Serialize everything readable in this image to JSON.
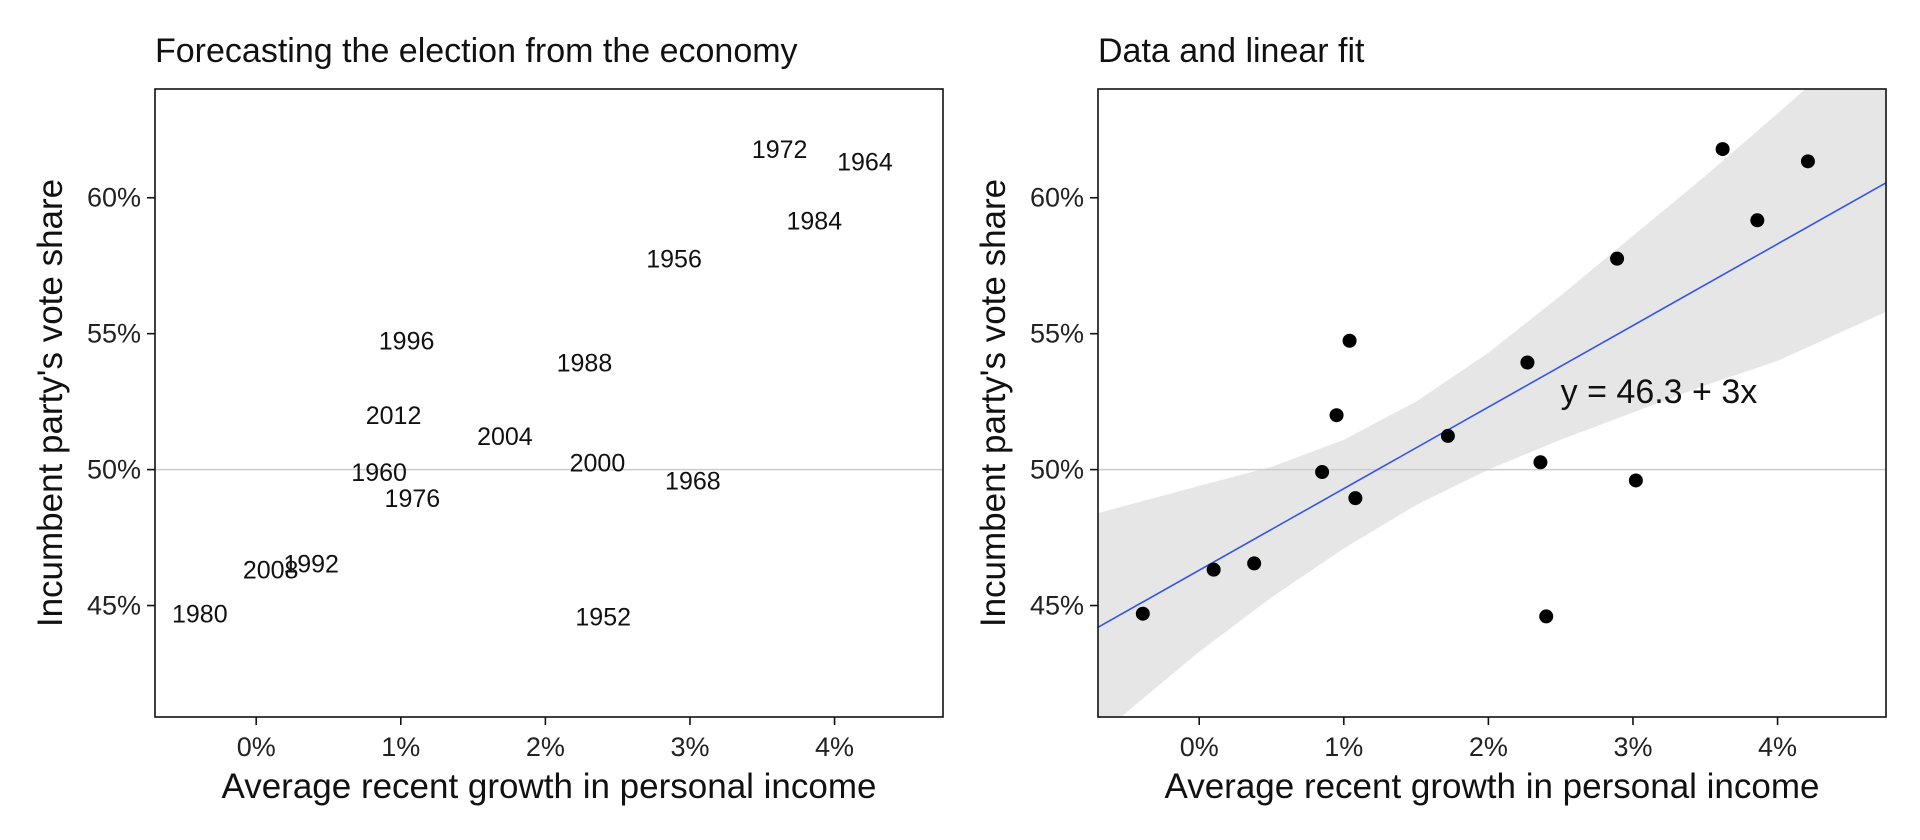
{
  "chart_data": [
    {
      "type": "scatter",
      "marker": "text-labels",
      "title": "Forecasting the election from the economy",
      "xlabel": "Average recent growth in personal income",
      "ylabel": "Incumbent party's vote share",
      "xlim": [
        -0.7,
        4.75
      ],
      "ylim": [
        40.9,
        64
      ],
      "xticks": [
        0,
        1,
        2,
        3,
        4
      ],
      "xtick_labels": [
        "0%",
        "1%",
        "2%",
        "3%",
        "4%"
      ],
      "yticks": [
        45,
        50,
        55,
        60
      ],
      "ytick_labels": [
        "45%",
        "50%",
        "55%",
        "60%"
      ],
      "reference_line_y": 50,
      "reference_color": "#cccccc",
      "grid": false,
      "points": [
        {
          "label": "1952",
          "x": 2.4,
          "y": 44.6
        },
        {
          "label": "1956",
          "x": 2.89,
          "y": 57.76
        },
        {
          "label": "1960",
          "x": 0.85,
          "y": 49.91
        },
        {
          "label": "1964",
          "x": 4.21,
          "y": 61.34
        },
        {
          "label": "1968",
          "x": 3.02,
          "y": 49.6
        },
        {
          "label": "1972",
          "x": 3.62,
          "y": 61.79
        },
        {
          "label": "1976",
          "x": 1.08,
          "y": 48.95
        },
        {
          "label": "1980",
          "x": -0.39,
          "y": 44.7
        },
        {
          "label": "1984",
          "x": 3.86,
          "y": 59.17
        },
        {
          "label": "1988",
          "x": 2.27,
          "y": 53.94
        },
        {
          "label": "1992",
          "x": 0.38,
          "y": 46.55
        },
        {
          "label": "1996",
          "x": 1.04,
          "y": 54.74
        },
        {
          "label": "2000",
          "x": 2.36,
          "y": 50.27
        },
        {
          "label": "2004",
          "x": 1.72,
          "y": 51.24
        },
        {
          "label": "2008",
          "x": 0.1,
          "y": 46.32
        },
        {
          "label": "2012",
          "x": 0.95,
          "y": 52.0
        }
      ]
    },
    {
      "type": "scatter",
      "title": "Data and linear fit",
      "xlabel": "Average recent growth in personal income",
      "ylabel": "Incumbent party's vote share",
      "xlim": [
        -0.7,
        4.75
      ],
      "ylim": [
        40.9,
        64
      ],
      "xticks": [
        0,
        1,
        2,
        3,
        4
      ],
      "xtick_labels": [
        "0%",
        "1%",
        "2%",
        "3%",
        "4%"
      ],
      "yticks": [
        45,
        50,
        55,
        60
      ],
      "ytick_labels": [
        "45%",
        "50%",
        "55%",
        "60%"
      ],
      "reference_line_y": 50,
      "reference_color": "#cccccc",
      "grid": false,
      "points": [
        {
          "x": 2.4,
          "y": 44.6
        },
        {
          "x": 2.89,
          "y": 57.76
        },
        {
          "x": 0.85,
          "y": 49.91
        },
        {
          "x": 4.21,
          "y": 61.34
        },
        {
          "x": 3.02,
          "y": 49.6
        },
        {
          "x": 3.62,
          "y": 61.79
        },
        {
          "x": 1.08,
          "y": 48.95
        },
        {
          "x": -0.39,
          "y": 44.7
        },
        {
          "x": 3.86,
          "y": 59.17
        },
        {
          "x": 2.27,
          "y": 53.94
        },
        {
          "x": 0.38,
          "y": 46.55
        },
        {
          "x": 1.04,
          "y": 54.74
        },
        {
          "x": 2.36,
          "y": 50.27
        },
        {
          "x": 1.72,
          "y": 51.24
        },
        {
          "x": 0.1,
          "y": 46.32
        },
        {
          "x": 0.95,
          "y": 52.0
        }
      ],
      "fit": {
        "intercept": 46.3,
        "slope": 3.0,
        "color": "#3355ee",
        "band_color": "#e6e6e6",
        "band": [
          {
            "x": -0.7,
            "lo": 40.2,
            "hi": 48.4
          },
          {
            "x": 0.0,
            "lo": 43.3,
            "hi": 49.4
          },
          {
            "x": 0.5,
            "lo": 45.3,
            "hi": 50.1
          },
          {
            "x": 1.0,
            "lo": 47.1,
            "hi": 51.1
          },
          {
            "x": 1.5,
            "lo": 48.7,
            "hi": 52.5
          },
          {
            "x": 2.0,
            "lo": 50.0,
            "hi": 54.3
          },
          {
            "x": 2.5,
            "lo": 51.1,
            "hi": 56.4
          },
          {
            "x": 3.0,
            "lo": 52.1,
            "hi": 58.6
          },
          {
            "x": 3.5,
            "lo": 53.1,
            "hi": 60.8
          },
          {
            "x": 4.0,
            "lo": 54.0,
            "hi": 63.1
          },
          {
            "x": 4.75,
            "lo": 55.8,
            "hi": 66.6
          }
        ]
      },
      "annotation": {
        "text": "y = 46.3 + 3x",
        "x": 2.5,
        "y": 52.9
      }
    }
  ]
}
